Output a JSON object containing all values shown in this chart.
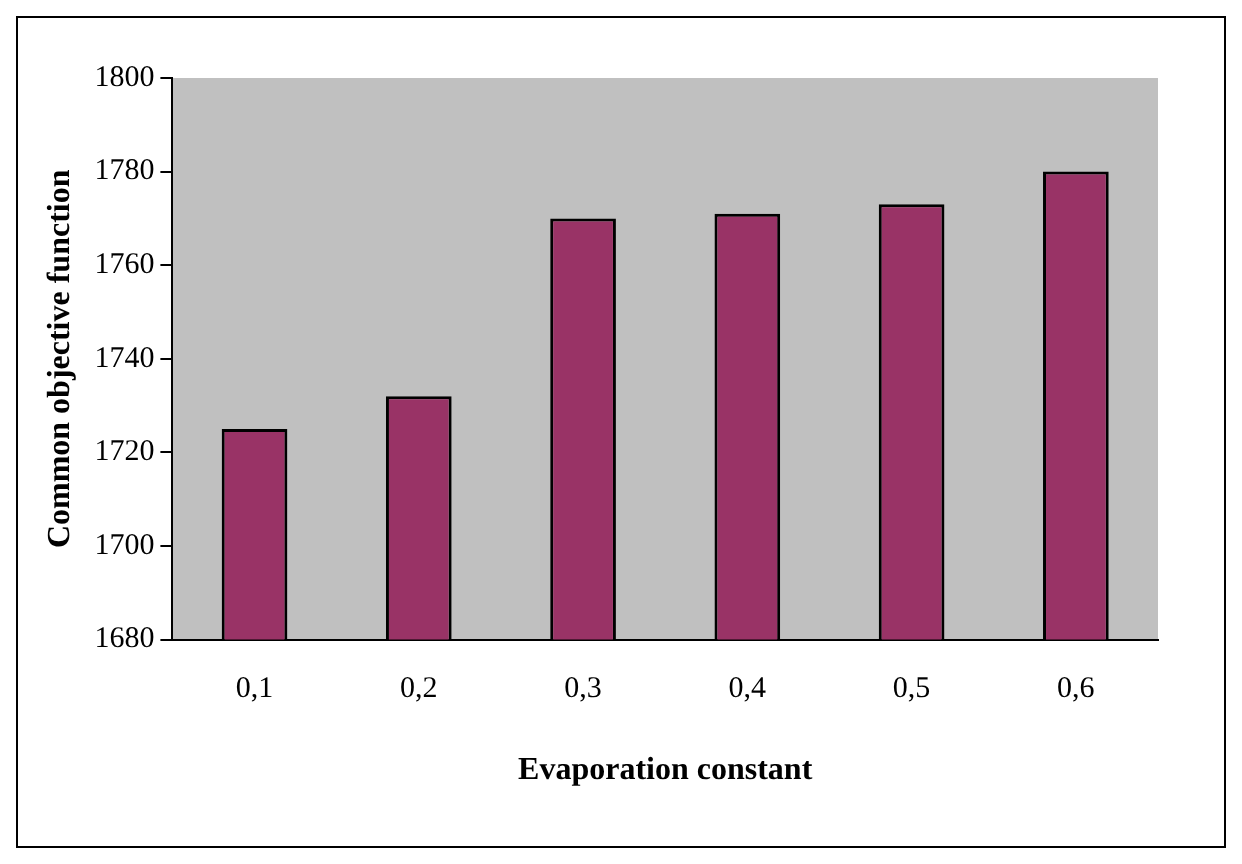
{
  "chart_data": {
    "type": "bar",
    "xlabel": "Evaporation constant",
    "ylabel": "Common objective function",
    "categories": [
      "0,1",
      "0,2",
      "0,3",
      "0,4",
      "0,5",
      "0,6"
    ],
    "values": [
      1725,
      1732,
      1770,
      1771,
      1773,
      1780
    ],
    "color": "#993366",
    "ylim": [
      1680,
      1800
    ],
    "yticks": [
      1680,
      1700,
      1720,
      1740,
      1760,
      1780,
      1800
    ],
    "grid": false,
    "legend": false
  }
}
